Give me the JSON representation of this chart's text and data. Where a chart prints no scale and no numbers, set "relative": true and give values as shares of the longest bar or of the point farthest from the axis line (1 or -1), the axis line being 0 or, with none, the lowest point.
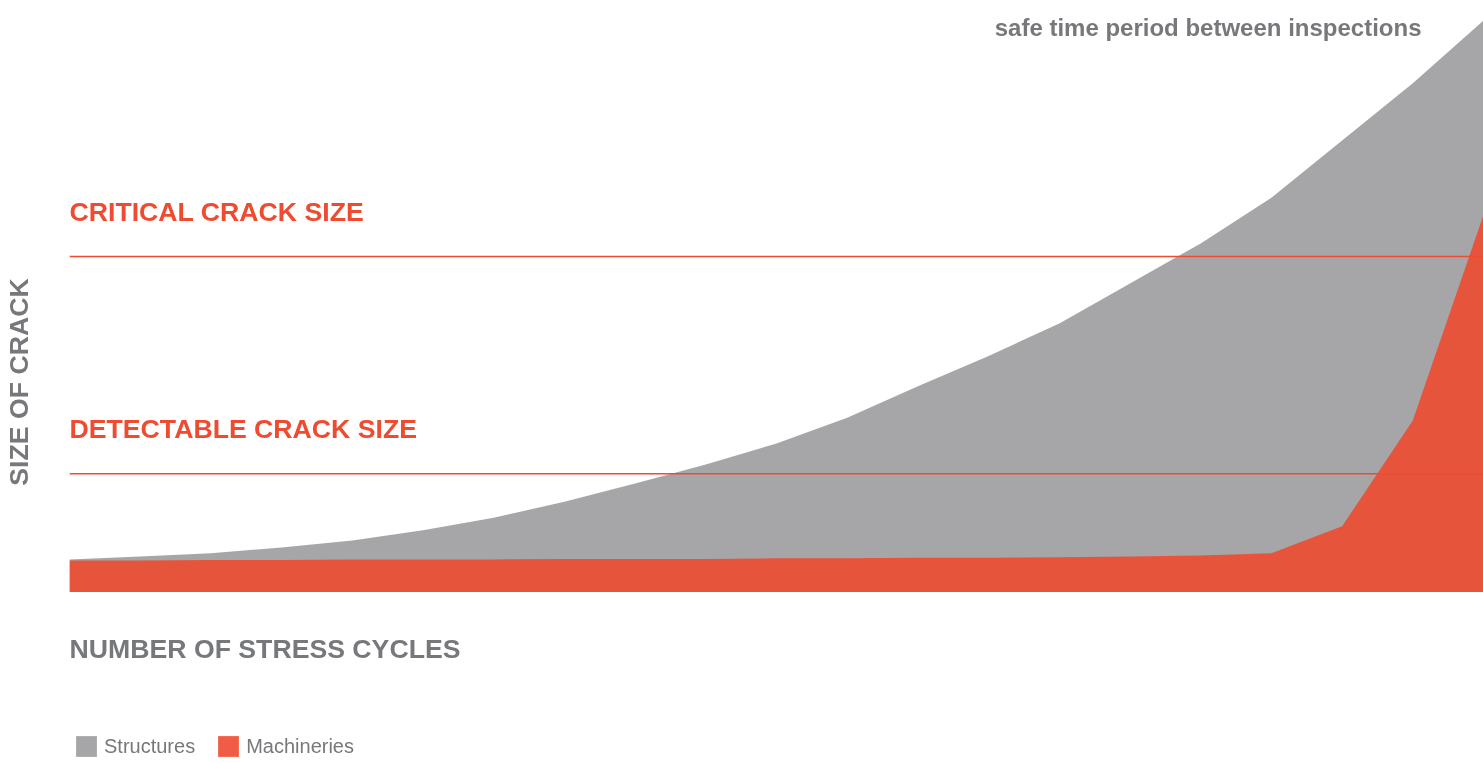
{
  "chart_data": {
    "type": "area",
    "relative": true,
    "xlabel": "NUMBER OF STRESS CYCLES",
    "ylabel": "SIZE OF CRACK",
    "categories": [
      null,
      null,
      null,
      null,
      null,
      null,
      null,
      null,
      null,
      null,
      null,
      null,
      null,
      null,
      null,
      null,
      null,
      null,
      null,
      null,
      null
    ],
    "series": [
      {
        "name": "Structures",
        "color": "#9c9c9e",
        "values": [
          0.057,
          0.062,
          0.068,
          0.078,
          0.09,
          0.108,
          0.13,
          0.158,
          0.19,
          0.223,
          0.26,
          0.305,
          0.36,
          0.413,
          0.47,
          0.54,
          0.61,
          0.69,
          0.79,
          0.89,
          1.0
        ]
      },
      {
        "name": "Machineries",
        "color": "#ee4b30",
        "values": [
          0.055,
          0.055,
          0.056,
          0.056,
          0.057,
          0.057,
          0.057,
          0.058,
          0.058,
          0.058,
          0.059,
          0.059,
          0.06,
          0.06,
          0.061,
          0.062,
          0.064,
          0.068,
          0.115,
          0.3,
          0.66
        ]
      }
    ],
    "ref_lines": [
      {
        "axis": "y",
        "value": 0.587,
        "label": "CRITICAL CRACK SIZE",
        "color": "#ee4b30"
      },
      {
        "axis": "y",
        "value": 0.207,
        "label": "DETECTABLE CRACK SIZE",
        "color": "#ee4b30"
      }
    ],
    "annotations": [
      "safe time period between inspections"
    ],
    "legend": "bottom left"
  }
}
